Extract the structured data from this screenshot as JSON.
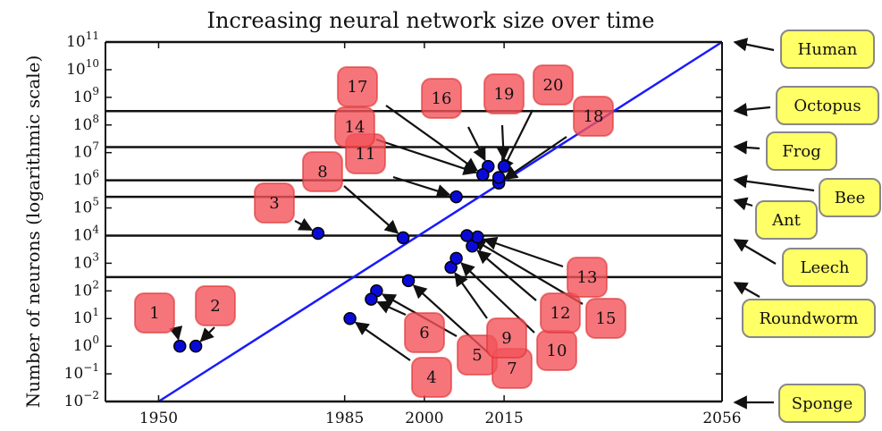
{
  "chart_data": {
    "type": "scatter",
    "title": "Increasing neural network size over time",
    "xlabel": "",
    "ylabel": "Number of neurons (logarithmic scale)",
    "xscale": "linear",
    "yscale": "log",
    "xlim": [
      1940,
      2056
    ],
    "ylim_log10": [
      -2,
      11
    ],
    "xticks": [
      {
        "value": 1950,
        "label": "1950"
      },
      {
        "value": 1985,
        "label": "1985"
      },
      {
        "value": 2000,
        "label": "2000"
      },
      {
        "value": 2015,
        "label": "2015"
      },
      {
        "value": 2056,
        "label": "2056"
      }
    ],
    "yticks_exponents": [
      -2,
      -1,
      0,
      1,
      2,
      3,
      4,
      5,
      6,
      7,
      8,
      9,
      10,
      11
    ],
    "trend_line": {
      "color": "#1a1aff",
      "points": [
        {
          "x": 1950,
          "log10_y": -2
        },
        {
          "x": 2056,
          "log10_y": 11
        }
      ]
    },
    "points": [
      {
        "id": "1",
        "x": 1954,
        "log10_y": 0.0
      },
      {
        "id": "2",
        "x": 1957,
        "log10_y": 0.0
      },
      {
        "id": "3",
        "x": 1980,
        "log10_y": 4.08
      },
      {
        "id": "4",
        "x": 1986,
        "log10_y": 1.0
      },
      {
        "id": "5",
        "x": 1991,
        "log10_y": 2.0
      },
      {
        "id": "6",
        "x": 1990,
        "log10_y": 1.7
      },
      {
        "id": "7",
        "x": 1997,
        "log10_y": 2.37
      },
      {
        "id": "8",
        "x": 1996,
        "log10_y": 3.92
      },
      {
        "id": "9",
        "x": 2005,
        "log10_y": 2.85
      },
      {
        "id": "10",
        "x": 2006,
        "log10_y": 3.18
      },
      {
        "id": "11",
        "x": 2006,
        "log10_y": 5.4
      },
      {
        "id": "12",
        "x": 2009,
        "log10_y": 3.62
      },
      {
        "id": "13",
        "x": 2010,
        "log10_y": 3.95
      },
      {
        "id": "14",
        "x": 2011,
        "log10_y": 6.2
      },
      {
        "id": "15",
        "x": 2008,
        "log10_y": 4.0
      },
      {
        "id": "16",
        "x": 2012,
        "log10_y": 6.5
      },
      {
        "id": "17",
        "x": 2011,
        "log10_y": 6.2
      },
      {
        "id": "18",
        "x": 2014,
        "log10_y": 5.9
      },
      {
        "id": "19",
        "x": 2015,
        "log10_y": 6.5
      },
      {
        "id": "20",
        "x": 2014,
        "log10_y": 6.1
      }
    ],
    "point_color": "#0a0ad8",
    "label_color": "#f2525a",
    "reference_lines": [
      {
        "name": "Human",
        "log10_y": 11.0
      },
      {
        "name": "Octopus",
        "log10_y": 8.5
      },
      {
        "name": "Frog",
        "log10_y": 7.2
      },
      {
        "name": "Bee",
        "log10_y": 6.0
      },
      {
        "name": "Ant",
        "log10_y": 5.4
      },
      {
        "name": "Leech",
        "log10_y": 4.0
      },
      {
        "name": "Roundworm",
        "log10_y": 2.5
      },
      {
        "name": "Sponge",
        "log10_y": -2.0
      }
    ],
    "reference_label_color": "#ffff66"
  }
}
